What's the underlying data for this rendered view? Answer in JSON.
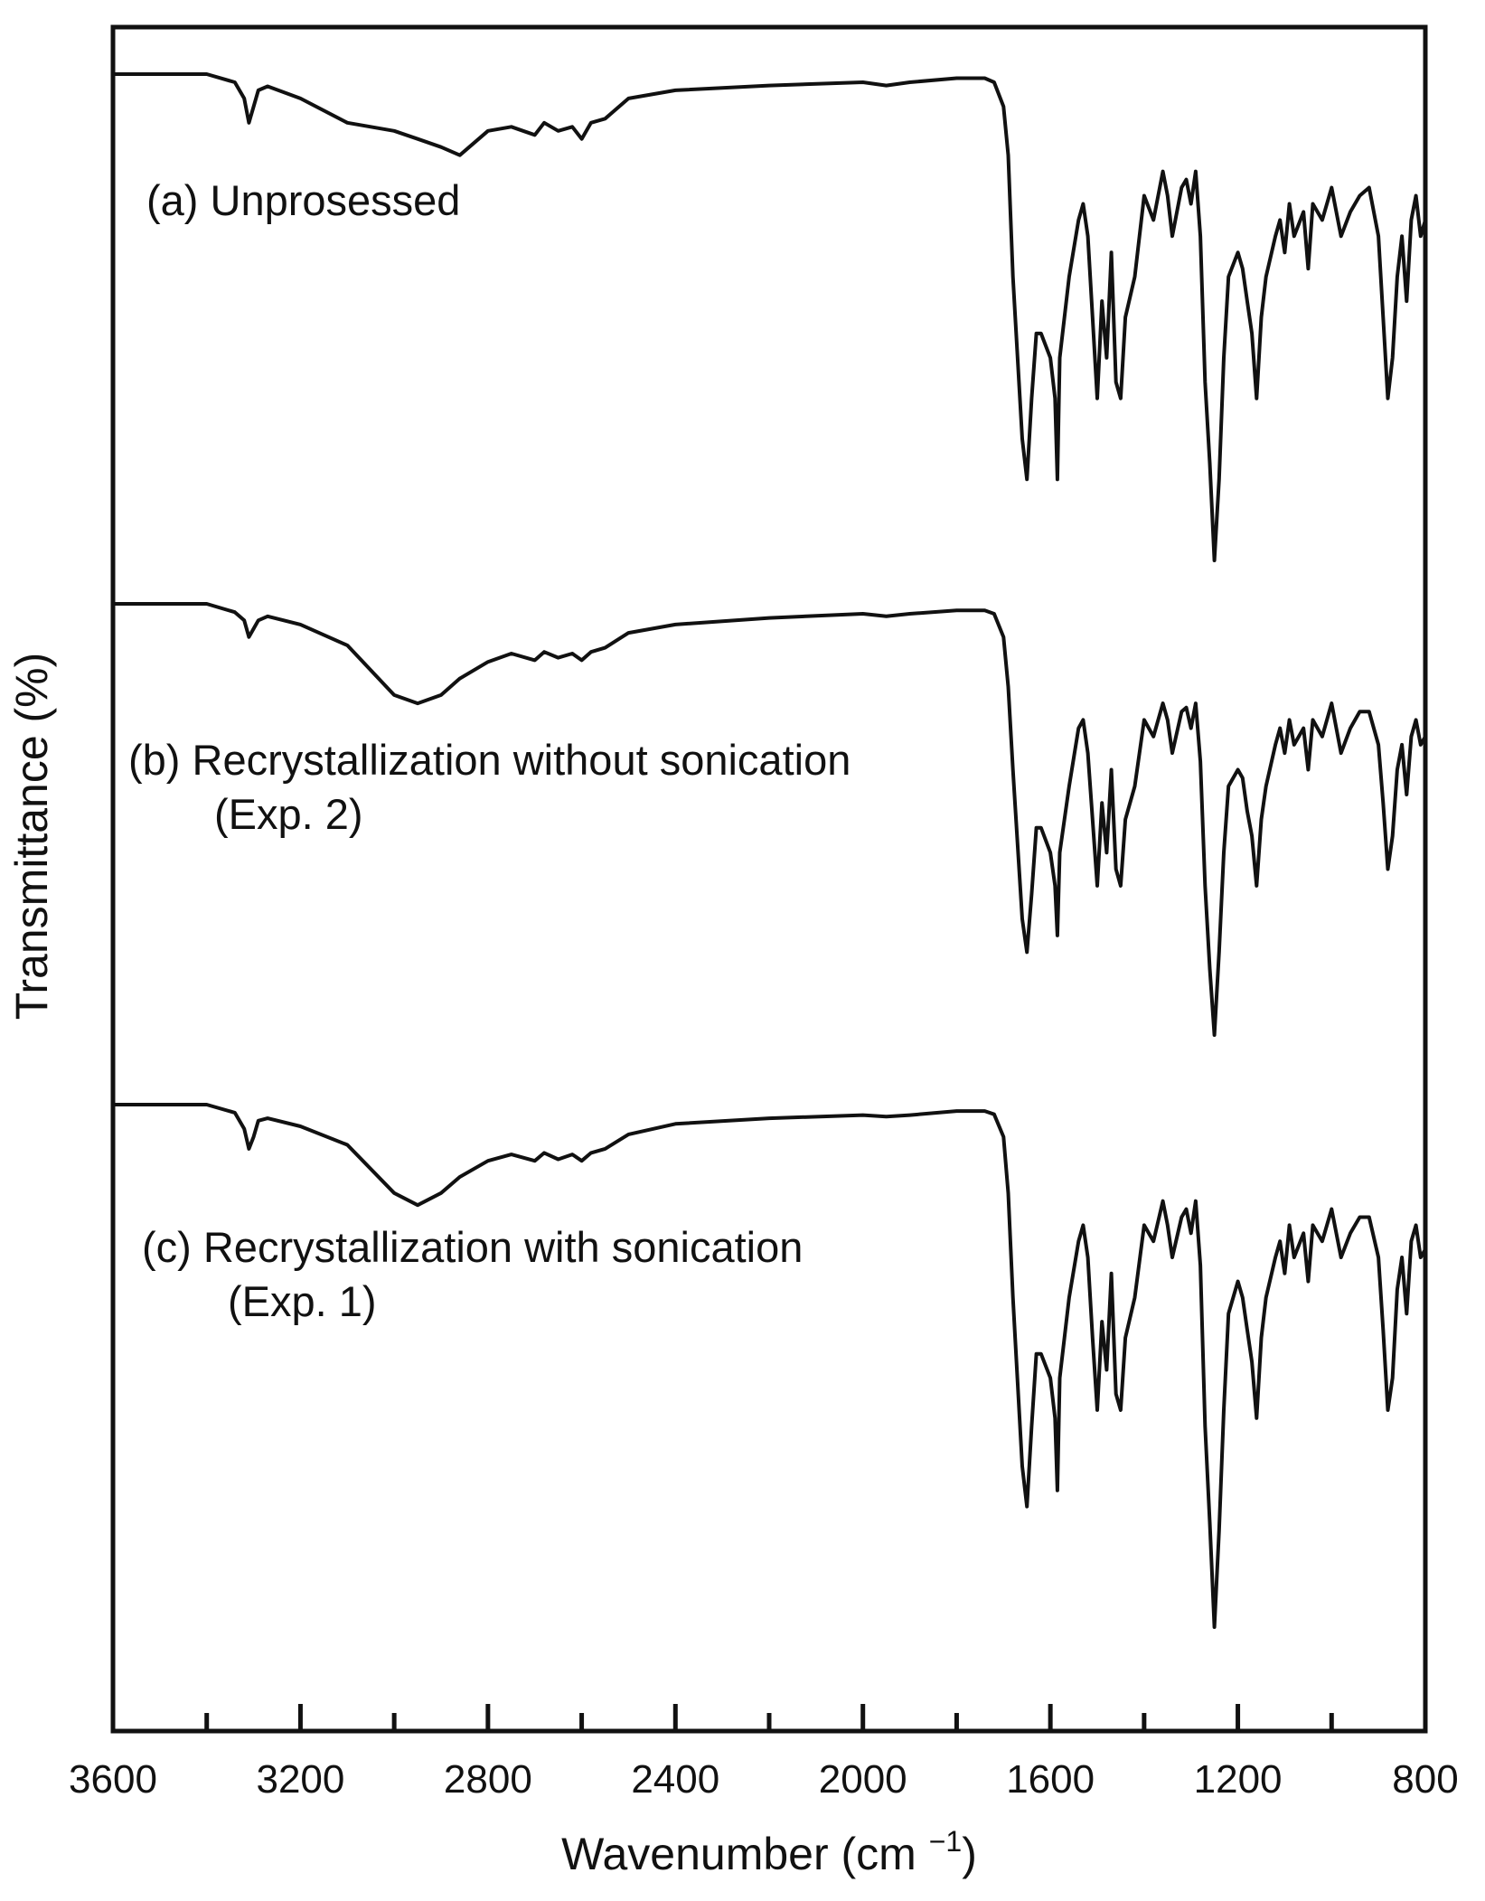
{
  "chart_data": {
    "type": "line",
    "title": "",
    "xlabel": "Wavenumber (cm −1)",
    "xlabel_main": "Wavenumber (cm ",
    "xlabel_sup": "−1",
    "xlabel_close": ")",
    "ylabel": "Transmittance (%)",
    "x_reversed": true,
    "xlim": [
      3600,
      800
    ],
    "major_ticks": [
      3600,
      3200,
      2800,
      2400,
      2000,
      1600,
      1200,
      800
    ],
    "tick_labels": [
      "3600",
      "3200",
      "2800",
      "2400",
      "2000",
      "1600",
      "1200",
      "800"
    ],
    "minor_ticks": [
      3400,
      3000,
      2600,
      2200,
      1800,
      1400,
      1000
    ],
    "y_ticks_shown": false,
    "grid": false,
    "legend": "none",
    "line_color": "#111111",
    "series": [
      {
        "name": "(a) Unprosessed",
        "label_lines": [
          "(a) Unprosessed"
        ],
        "x": [
          3600,
          3400,
          3340,
          3320,
          3310,
          3300,
          3290,
          3270,
          3200,
          3100,
          3000,
          2950,
          2900,
          2860,
          2800,
          2750,
          2700,
          2680,
          2650,
          2620,
          2600,
          2580,
          2550,
          2500,
          2400,
          2200,
          2000,
          1950,
          1900,
          1800,
          1740,
          1720,
          1700,
          1690,
          1680,
          1660,
          1650,
          1640,
          1630,
          1620,
          1600,
          1590,
          1585,
          1580,
          1570,
          1560,
          1540,
          1530,
          1520,
          1510,
          1500,
          1490,
          1480,
          1470,
          1460,
          1450,
          1440,
          1420,
          1400,
          1380,
          1360,
          1350,
          1340,
          1320,
          1310,
          1300,
          1290,
          1280,
          1270,
          1260,
          1250,
          1240,
          1230,
          1220,
          1200,
          1190,
          1180,
          1170,
          1160,
          1150,
          1140,
          1120,
          1110,
          1100,
          1090,
          1080,
          1060,
          1050,
          1040,
          1020,
          1000,
          980,
          960,
          940,
          920,
          900,
          890,
          880,
          870,
          860,
          850,
          840,
          830,
          820,
          810,
          800
        ],
        "y": [
          100,
          100,
          99,
          97,
          94,
          96,
          98,
          98.5,
          97,
          94,
          93,
          92,
          91,
          90,
          93,
          93.5,
          92.5,
          94,
          93,
          93.5,
          92,
          94,
          94.5,
          97,
          98,
          98.6,
          99,
          98.6,
          99,
          99.5,
          99.5,
          99,
          96,
          90,
          75,
          55,
          50,
          60,
          68,
          68,
          65,
          60,
          50,
          65,
          70,
          75,
          82,
          84,
          80,
          70,
          60,
          72,
          65,
          78,
          62,
          60,
          70,
          75,
          85,
          82,
          88,
          85,
          80,
          86,
          87,
          84,
          88,
          80,
          62,
          52,
          40,
          50,
          65,
          75,
          78,
          76,
          72,
          68,
          60,
          70,
          75,
          80,
          82,
          78,
          84,
          80,
          83,
          76,
          84,
          82,
          86,
          80,
          83,
          85,
          86,
          80,
          70,
          60,
          65,
          75,
          80,
          72,
          82,
          85,
          80,
          82
        ]
      },
      {
        "name": "(b) Recrystallization without sonication (Exp. 2)",
        "label_lines": [
          "(b) Recrystallization without sonication",
          "(Exp. 2)"
        ],
        "x": [
          3600,
          3400,
          3340,
          3320,
          3310,
          3300,
          3290,
          3270,
          3200,
          3100,
          3000,
          2950,
          2900,
          2860,
          2800,
          2750,
          2700,
          2680,
          2650,
          2620,
          2600,
          2580,
          2550,
          2500,
          2400,
          2200,
          2000,
          1950,
          1900,
          1800,
          1740,
          1720,
          1700,
          1690,
          1680,
          1660,
          1650,
          1640,
          1630,
          1620,
          1600,
          1590,
          1585,
          1580,
          1570,
          1560,
          1540,
          1530,
          1520,
          1510,
          1500,
          1490,
          1480,
          1470,
          1460,
          1450,
          1440,
          1420,
          1400,
          1380,
          1360,
          1350,
          1340,
          1320,
          1310,
          1300,
          1290,
          1280,
          1270,
          1260,
          1250,
          1240,
          1230,
          1220,
          1200,
          1190,
          1180,
          1170,
          1160,
          1150,
          1140,
          1120,
          1110,
          1100,
          1090,
          1080,
          1060,
          1050,
          1040,
          1020,
          1000,
          980,
          960,
          940,
          920,
          900,
          890,
          880,
          870,
          860,
          850,
          840,
          830,
          820,
          810,
          800
        ],
        "y": [
          100,
          100,
          99,
          98,
          96,
          97,
          98,
          98.5,
          97.5,
          95,
          89,
          88,
          89,
          91,
          93,
          94,
          93.2,
          94.2,
          93.5,
          94,
          93.2,
          94.2,
          94.7,
          96.5,
          97.5,
          98.3,
          98.8,
          98.5,
          98.8,
          99.2,
          99.2,
          98.8,
          96,
          90,
          80,
          62,
          58,
          65,
          73,
          73,
          70,
          66,
          60,
          70,
          74,
          78,
          85,
          86,
          82,
          74,
          66,
          76,
          70,
          80,
          68,
          66,
          74,
          78,
          86,
          84,
          88,
          86,
          82,
          87,
          87.5,
          85,
          88,
          81,
          66,
          56,
          48,
          58,
          70,
          78,
          80,
          79,
          75,
          72,
          66,
          74,
          78,
          83,
          85,
          82,
          86,
          83,
          85,
          80,
          86,
          84,
          88,
          82,
          85,
          87,
          87,
          83,
          76,
          68,
          72,
          80,
          83,
          77,
          84,
          86,
          83,
          84
        ]
      },
      {
        "name": "(c) Recrystallization with sonication (Exp. 1)",
        "label_lines": [
          "(c) Recrystallization with sonication",
          "(Exp. 1)"
        ],
        "x": [
          3600,
          3400,
          3340,
          3320,
          3310,
          3300,
          3290,
          3270,
          3200,
          3100,
          3000,
          2950,
          2900,
          2860,
          2800,
          2750,
          2700,
          2680,
          2650,
          2620,
          2600,
          2580,
          2550,
          2500,
          2400,
          2200,
          2000,
          1950,
          1900,
          1800,
          1740,
          1720,
          1700,
          1690,
          1680,
          1660,
          1650,
          1640,
          1630,
          1620,
          1600,
          1590,
          1585,
          1580,
          1570,
          1560,
          1540,
          1530,
          1520,
          1510,
          1500,
          1490,
          1480,
          1470,
          1460,
          1450,
          1440,
          1420,
          1400,
          1380,
          1360,
          1350,
          1340,
          1320,
          1310,
          1300,
          1290,
          1280,
          1270,
          1260,
          1250,
          1240,
          1230,
          1220,
          1200,
          1190,
          1180,
          1170,
          1160,
          1150,
          1140,
          1120,
          1110,
          1100,
          1090,
          1080,
          1060,
          1050,
          1040,
          1020,
          1000,
          980,
          960,
          940,
          920,
          900,
          890,
          880,
          870,
          860,
          850,
          840,
          830,
          820,
          810,
          800
        ],
        "y": [
          100,
          100,
          99,
          97,
          94.5,
          96,
          98,
          98.3,
          97.3,
          95,
          89,
          87.5,
          89,
          91,
          93,
          93.8,
          93,
          94,
          93.2,
          93.8,
          93,
          94,
          94.5,
          96.3,
          97.6,
          98.3,
          98.7,
          98.5,
          98.7,
          99.2,
          99.2,
          98.8,
          96,
          89,
          76,
          55,
          50,
          60,
          69,
          69,
          66,
          61,
          52,
          66,
          71,
          76,
          83,
          85,
          81,
          71,
          62,
          73,
          67,
          79,
          64,
          62,
          71,
          76,
          85,
          83,
          88,
          85,
          81,
          86,
          87,
          84,
          88,
          80,
          60,
          48,
          35,
          47,
          62,
          74,
          78,
          76,
          72,
          68,
          61,
          71,
          76,
          81,
          83,
          79,
          85,
          81,
          84,
          78,
          85,
          83,
          87,
          81,
          84,
          86,
          86,
          81,
          72,
          62,
          66,
          77,
          81,
          74,
          83,
          85,
          81,
          82
        ]
      }
    ]
  }
}
